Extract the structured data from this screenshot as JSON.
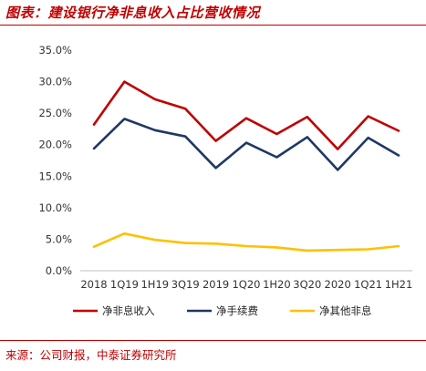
{
  "header": {
    "title": "图表：建设银行净非息收入占比营收情况"
  },
  "footer": {
    "source": "来源：公司财报，中泰证券研究所"
  },
  "chart_data": {
    "type": "line",
    "categories": [
      "2018",
      "1Q19",
      "1H19",
      "3Q19",
      "2019",
      "1Q20",
      "1H20",
      "3Q20",
      "2020",
      "1Q21",
      "1H21"
    ],
    "y_tick_labels": [
      "0.0%",
      "5.0%",
      "10.0%",
      "15.0%",
      "20.0%",
      "25.0%",
      "30.0%",
      "35.0%"
    ],
    "ylim": [
      0,
      35
    ],
    "grid": false,
    "legend_position": "bottom",
    "series": [
      {
        "name": "净非息收入",
        "color": "#c00000",
        "values": [
          23.2,
          30.0,
          27.2,
          25.7,
          20.6,
          24.2,
          21.7,
          24.4,
          19.3,
          24.5,
          22.2
        ]
      },
      {
        "name": "净手续费",
        "color": "#1f3864",
        "values": [
          19.4,
          24.1,
          22.3,
          21.3,
          16.3,
          20.3,
          18.0,
          21.2,
          16.0,
          21.1,
          18.3
        ]
      },
      {
        "name": "净其他非息",
        "color": "#ffc000",
        "values": [
          3.8,
          5.9,
          4.9,
          4.4,
          4.3,
          3.9,
          3.7,
          3.2,
          3.3,
          3.4,
          3.9
        ]
      }
    ]
  }
}
